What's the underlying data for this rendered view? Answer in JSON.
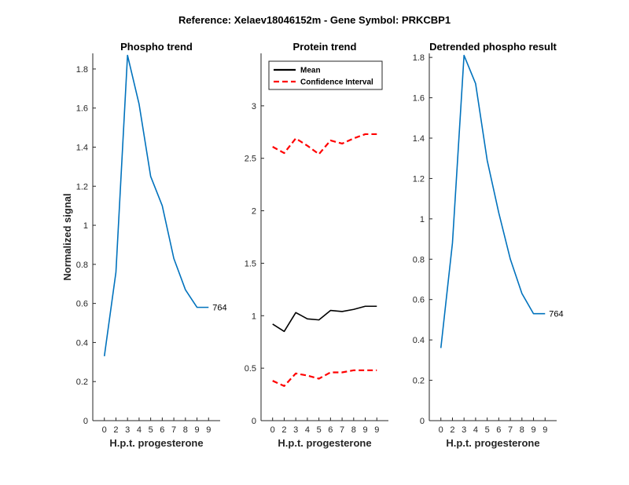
{
  "suptitle": "Reference:  Xelaev18046152m - Gene Symbol:  PRKCBP1",
  "chart_data": [
    {
      "type": "line",
      "title": "Phospho trend",
      "xlabel": "H.p.t. progesterone",
      "ylabel": "Normalized signal",
      "xlim": [
        -1,
        10
      ],
      "ylim": [
        0,
        1.88
      ],
      "x_ticks": [
        0,
        1,
        2,
        3,
        4,
        5,
        6,
        7,
        8,
        9
      ],
      "x_tick_labels": [
        "0",
        "2",
        "3",
        "4",
        "5",
        "6",
        "7",
        "8",
        "9",
        "9"
      ],
      "y_ticks": [
        0,
        0.2,
        0.4,
        0.6,
        0.8,
        1,
        1.2,
        1.4,
        1.6,
        1.8
      ],
      "y_tick_labels": [
        "0",
        "0.2",
        "0.4",
        "0.6",
        "0.8",
        "1",
        "1.2",
        "1.4",
        "1.6",
        "1.8"
      ],
      "series": [
        {
          "color": "#0072BD",
          "dash": "",
          "x": [
            0,
            1,
            2,
            3,
            4,
            5,
            6,
            7,
            8,
            9
          ],
          "y": [
            0.33,
            0.76,
            1.87,
            1.62,
            1.25,
            1.1,
            0.83,
            0.67,
            0.58,
            0.58
          ]
        }
      ],
      "end_label": {
        "text": "764",
        "x": 9,
        "y": 0.58
      }
    },
    {
      "type": "line",
      "title": "Protein trend",
      "xlabel": "H.p.t. progesterone",
      "ylabel": "",
      "xlim": [
        -1,
        10
      ],
      "ylim": [
        0,
        3.5
      ],
      "x_ticks": [
        0,
        1,
        2,
        3,
        4,
        5,
        6,
        7,
        8,
        9
      ],
      "x_tick_labels": [
        "0",
        "2",
        "3",
        "4",
        "5",
        "6",
        "7",
        "8",
        "9",
        "9"
      ],
      "y_ticks": [
        0,
        0.5,
        1,
        1.5,
        2,
        2.5,
        3
      ],
      "y_tick_labels": [
        "0",
        "0.5",
        "1",
        "1.5",
        "2",
        "2.5",
        "3"
      ],
      "series": [
        {
          "name": "Mean",
          "color": "#000000",
          "dash": "",
          "x": [
            0,
            1,
            2,
            3,
            4,
            5,
            6,
            7,
            8,
            9
          ],
          "y": [
            0.92,
            0.85,
            1.03,
            0.97,
            0.96,
            1.05,
            1.04,
            1.06,
            1.09,
            1.09
          ]
        },
        {
          "name": "Confidence Interval",
          "color": "#FF0000",
          "dash": "7,4",
          "x": [
            0,
            1,
            2,
            3,
            4,
            5,
            6,
            7,
            8,
            9
          ],
          "y": [
            2.61,
            2.55,
            2.69,
            2.62,
            2.54,
            2.67,
            2.64,
            2.69,
            2.73,
            2.73
          ]
        },
        {
          "name": "",
          "color": "#FF0000",
          "dash": "7,4",
          "x": [
            0,
            1,
            2,
            3,
            4,
            5,
            6,
            7,
            8,
            9
          ],
          "y": [
            0.38,
            0.33,
            0.45,
            0.43,
            0.4,
            0.46,
            0.46,
            0.48,
            0.48,
            0.48
          ]
        }
      ],
      "legend": {
        "position": "top-left",
        "entries": [
          "Mean",
          "Confidence Interval"
        ]
      }
    },
    {
      "type": "line",
      "title": "Detrended phospho result",
      "xlabel": "H.p.t. progesterone",
      "ylabel": "",
      "xlim": [
        -1,
        10
      ],
      "ylim": [
        0,
        1.82
      ],
      "x_ticks": [
        0,
        1,
        2,
        3,
        4,
        5,
        6,
        7,
        8,
        9
      ],
      "x_tick_labels": [
        "0",
        "2",
        "3",
        "4",
        "5",
        "6",
        "7",
        "8",
        "9",
        "9"
      ],
      "y_ticks": [
        0,
        0.2,
        0.4,
        0.6,
        0.8,
        1,
        1.2,
        1.4,
        1.6,
        1.8
      ],
      "y_tick_labels": [
        "0",
        "0.2",
        "0.4",
        "0.6",
        "0.8",
        "1",
        "1.2",
        "1.4",
        "1.6",
        "1.8"
      ],
      "series": [
        {
          "color": "#0072BD",
          "dash": "",
          "x": [
            0,
            1,
            2,
            3,
            4,
            5,
            6,
            7,
            8,
            9
          ],
          "y": [
            0.36,
            0.88,
            1.81,
            1.67,
            1.29,
            1.03,
            0.8,
            0.63,
            0.53,
            0.53
          ]
        }
      ],
      "end_label": {
        "text": "764",
        "x": 9,
        "y": 0.53
      }
    }
  ]
}
